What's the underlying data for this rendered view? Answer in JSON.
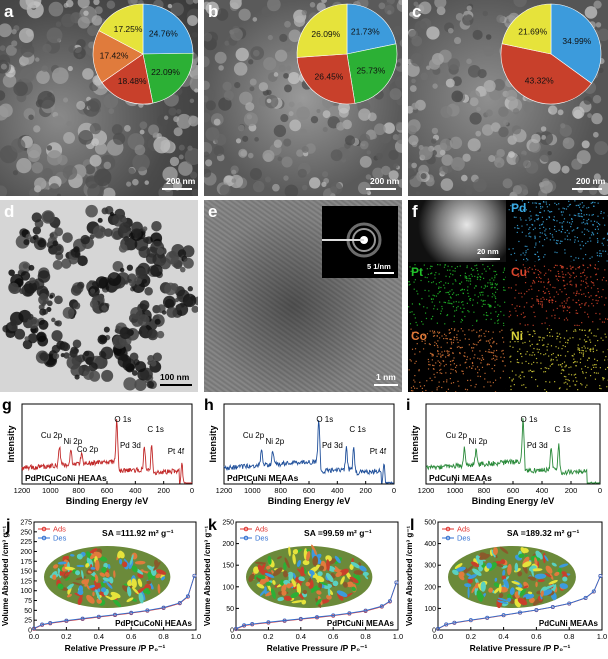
{
  "panels": {
    "a": {
      "label": "a",
      "scale": "200 nm"
    },
    "b": {
      "label": "b",
      "scale": "200 nm"
    },
    "c": {
      "label": "c",
      "scale": "200 nm"
    },
    "d": {
      "label": "d",
      "scale": "100 nm"
    },
    "e": {
      "label": "e",
      "scale": "1 nm",
      "inset_scale": "5 1/nm"
    },
    "f": {
      "label": "f",
      "haadf_scale": "20 nm",
      "elements": [
        "Pd",
        "Pt",
        "Cu",
        "Co",
        "Ni"
      ]
    },
    "g": {
      "label": "g"
    },
    "h": {
      "label": "h"
    },
    "i": {
      "label": "i"
    },
    "j": {
      "label": "j"
    },
    "k": {
      "label": "k"
    },
    "l": {
      "label": "l"
    }
  },
  "colors": {
    "pie_blue": "#3c9bdc",
    "pie_green": "#2cb035",
    "pie_red": "#c8402b",
    "pie_orange": "#e07b3c",
    "pie_yellow": "#e6e33b",
    "xps_g": "#c22a2a",
    "xps_h": "#1f4f9a",
    "xps_i": "#2a8a3a",
    "ads": "#e0332f",
    "des": "#2f6fd0",
    "Pd": "#3aa8e0",
    "Pt": "#22c12a",
    "Cu": "#d8452c",
    "Co": "#e07a3a",
    "Ni": "#d9d23a"
  },
  "chart_data": [
    {
      "type": "pie",
      "panel": "a",
      "slices": [
        {
          "label": "24.76%",
          "value": 24.76,
          "color": "#3c9bdc"
        },
        {
          "label": "22.09%",
          "value": 22.09,
          "color": "#2cb035"
        },
        {
          "label": "18.48%",
          "value": 18.48,
          "color": "#c8402b"
        },
        {
          "label": "17.42%",
          "value": 17.42,
          "color": "#e07b3c"
        },
        {
          "label": "17.25%",
          "value": 17.25,
          "color": "#e6e33b"
        }
      ]
    },
    {
      "type": "pie",
      "panel": "b",
      "slices": [
        {
          "label": "21.73%",
          "value": 21.73,
          "color": "#3c9bdc"
        },
        {
          "label": "25.73%",
          "value": 25.73,
          "color": "#2cb035"
        },
        {
          "label": "26.45%",
          "value": 26.45,
          "color": "#c8402b"
        },
        {
          "label": "26.09%",
          "value": 26.09,
          "color": "#e6e33b"
        }
      ]
    },
    {
      "type": "pie",
      "panel": "c",
      "slices": [
        {
          "label": "34.99%",
          "value": 34.99,
          "color": "#3c9bdc"
        },
        {
          "label": "43.32%",
          "value": 43.32,
          "color": "#c8402b"
        },
        {
          "label": "21.69%",
          "value": 21.69,
          "color": "#e6e33b"
        }
      ]
    },
    {
      "type": "line",
      "panel": "g",
      "xlabel": "Binding Energy /eV",
      "ylabel": "Intensity",
      "xlim": [
        1200,
        0
      ],
      "xticks": [
        1200,
        1000,
        800,
        600,
        400,
        200,
        0
      ],
      "name_label": "PdPtCuCoNi HEAAs",
      "peaks": [
        {
          "label": "Cu 2p",
          "x": 935
        },
        {
          "label": "Ni 2p",
          "x": 855
        },
        {
          "label": "Co 2p",
          "x": 780
        },
        {
          "label": "O 1s",
          "x": 531
        },
        {
          "label": "C 1s",
          "x": 285
        },
        {
          "label": "Pd 3d",
          "x": 336
        },
        {
          "label": "Pt 4f",
          "x": 71
        }
      ]
    },
    {
      "type": "line",
      "panel": "h",
      "xlabel": "Binding Energy /eV",
      "ylabel": "Intensity",
      "xlim": [
        1200,
        0
      ],
      "xticks": [
        1200,
        1000,
        800,
        600,
        400,
        200,
        0
      ],
      "name_label": "PdPtCuNi MEAAs",
      "peaks": [
        {
          "label": "Cu 2p",
          "x": 935
        },
        {
          "label": "Ni 2p",
          "x": 855
        },
        {
          "label": "O 1s",
          "x": 531
        },
        {
          "label": "Pd 3d",
          "x": 336
        },
        {
          "label": "C 1s",
          "x": 285
        },
        {
          "label": "Pt 4f",
          "x": 71
        }
      ]
    },
    {
      "type": "line",
      "panel": "i",
      "xlabel": "Binding Energy /eV",
      "ylabel": "Intensity",
      "xlim": [
        1200,
        0
      ],
      "xticks": [
        1200,
        1000,
        800,
        600,
        400,
        200,
        0
      ],
      "name_label": "PdCuNi MEAAs",
      "peaks": [
        {
          "label": "Cu 2p",
          "x": 935
        },
        {
          "label": "Ni 2p",
          "x": 855
        },
        {
          "label": "O 1s",
          "x": 531
        },
        {
          "label": "Pd 3d",
          "x": 336
        },
        {
          "label": "C 1s",
          "x": 285
        }
      ]
    },
    {
      "type": "line",
      "panel": "j",
      "xlabel": "Relative Pressure /P P₀⁻¹",
      "ylabel": "Volume Absorbed /cm³ g⁻¹",
      "xlim": [
        0.0,
        1.0
      ],
      "ylim": [
        0,
        275
      ],
      "xticks": [
        "0.0",
        "0.2",
        "0.4",
        "0.6",
        "0.8",
        "1.0"
      ],
      "yticks": [
        0,
        25,
        50,
        75,
        100,
        125,
        150,
        175,
        200,
        225,
        250,
        275
      ],
      "annotation": "SA =111.92 m² g⁻¹",
      "name_label": "PdPtCuCoNi HEAAs",
      "series": [
        {
          "name": "Ads",
          "x": [
            0.0,
            0.05,
            0.1,
            0.2,
            0.3,
            0.4,
            0.5,
            0.6,
            0.7,
            0.8,
            0.9,
            0.95,
            0.99
          ],
          "y": [
            3,
            13,
            17,
            23,
            28,
            33,
            38,
            43,
            49,
            56,
            68,
            85,
            138
          ]
        },
        {
          "name": "Des",
          "x": [
            0.0,
            0.05,
            0.1,
            0.2,
            0.3,
            0.4,
            0.5,
            0.6,
            0.7,
            0.8,
            0.9,
            0.95,
            0.99
          ],
          "y": [
            4,
            14,
            18,
            24,
            29,
            34,
            39,
            44,
            50,
            57,
            69,
            86,
            138
          ]
        }
      ]
    },
    {
      "type": "line",
      "panel": "k",
      "xlabel": "Relative Pressure /P P₀⁻¹",
      "ylabel": "Volume Absorbed /cm³ g⁻¹",
      "xlim": [
        0.0,
        1.0
      ],
      "ylim": [
        0,
        250
      ],
      "xticks": [
        "0.0",
        "0.2",
        "0.4",
        "0.6",
        "0.8",
        "1.0"
      ],
      "yticks": [
        0,
        50,
        100,
        150,
        200,
        250
      ],
      "annotation": "SA =99.59 m² g⁻¹",
      "name_label": "PdPtCuNi MEAAs",
      "series": [
        {
          "name": "Ads",
          "x": [
            0.0,
            0.05,
            0.1,
            0.2,
            0.3,
            0.4,
            0.5,
            0.6,
            0.7,
            0.8,
            0.9,
            0.95,
            0.99
          ],
          "y": [
            2,
            10,
            13,
            17,
            21,
            25,
            29,
            33,
            38,
            44,
            54,
            66,
            110
          ]
        },
        {
          "name": "Des",
          "x": [
            0.0,
            0.05,
            0.1,
            0.2,
            0.3,
            0.4,
            0.5,
            0.6,
            0.7,
            0.8,
            0.9,
            0.95,
            0.99
          ],
          "y": [
            3,
            11,
            14,
            18,
            22,
            26,
            30,
            34,
            39,
            45,
            55,
            67,
            110
          ]
        }
      ]
    },
    {
      "type": "line",
      "panel": "l",
      "xlabel": "Relative Pressure /P P₀⁻¹",
      "ylabel": "Volume Absorbed /cm³ g⁻¹",
      "xlim": [
        0.0,
        1.0
      ],
      "ylim": [
        0,
        500
      ],
      "xticks": [
        "0.0",
        "0.2",
        "0.4",
        "0.6",
        "0.8",
        "1.0"
      ],
      "yticks": [
        0,
        100,
        200,
        300,
        400,
        500
      ],
      "annotation": "SA =189.32 m² g⁻¹",
      "name_label": "PdCuNi MEAAs",
      "series": [
        {
          "name": "Ads",
          "x": [
            0.0,
            0.05,
            0.1,
            0.2,
            0.3,
            0.4,
            0.5,
            0.6,
            0.7,
            0.8,
            0.9,
            0.95,
            0.99
          ],
          "y": [
            5,
            25,
            33,
            45,
            56,
            68,
            80,
            92,
            106,
            122,
            148,
            178,
            250
          ]
        },
        {
          "name": "Des",
          "x": [
            0.0,
            0.05,
            0.1,
            0.2,
            0.3,
            0.4,
            0.5,
            0.6,
            0.7,
            0.8,
            0.9,
            0.95,
            0.99
          ],
          "y": [
            6,
            26,
            34,
            46,
            57,
            69,
            81,
            93,
            107,
            123,
            149,
            179,
            250
          ]
        }
      ]
    }
  ]
}
